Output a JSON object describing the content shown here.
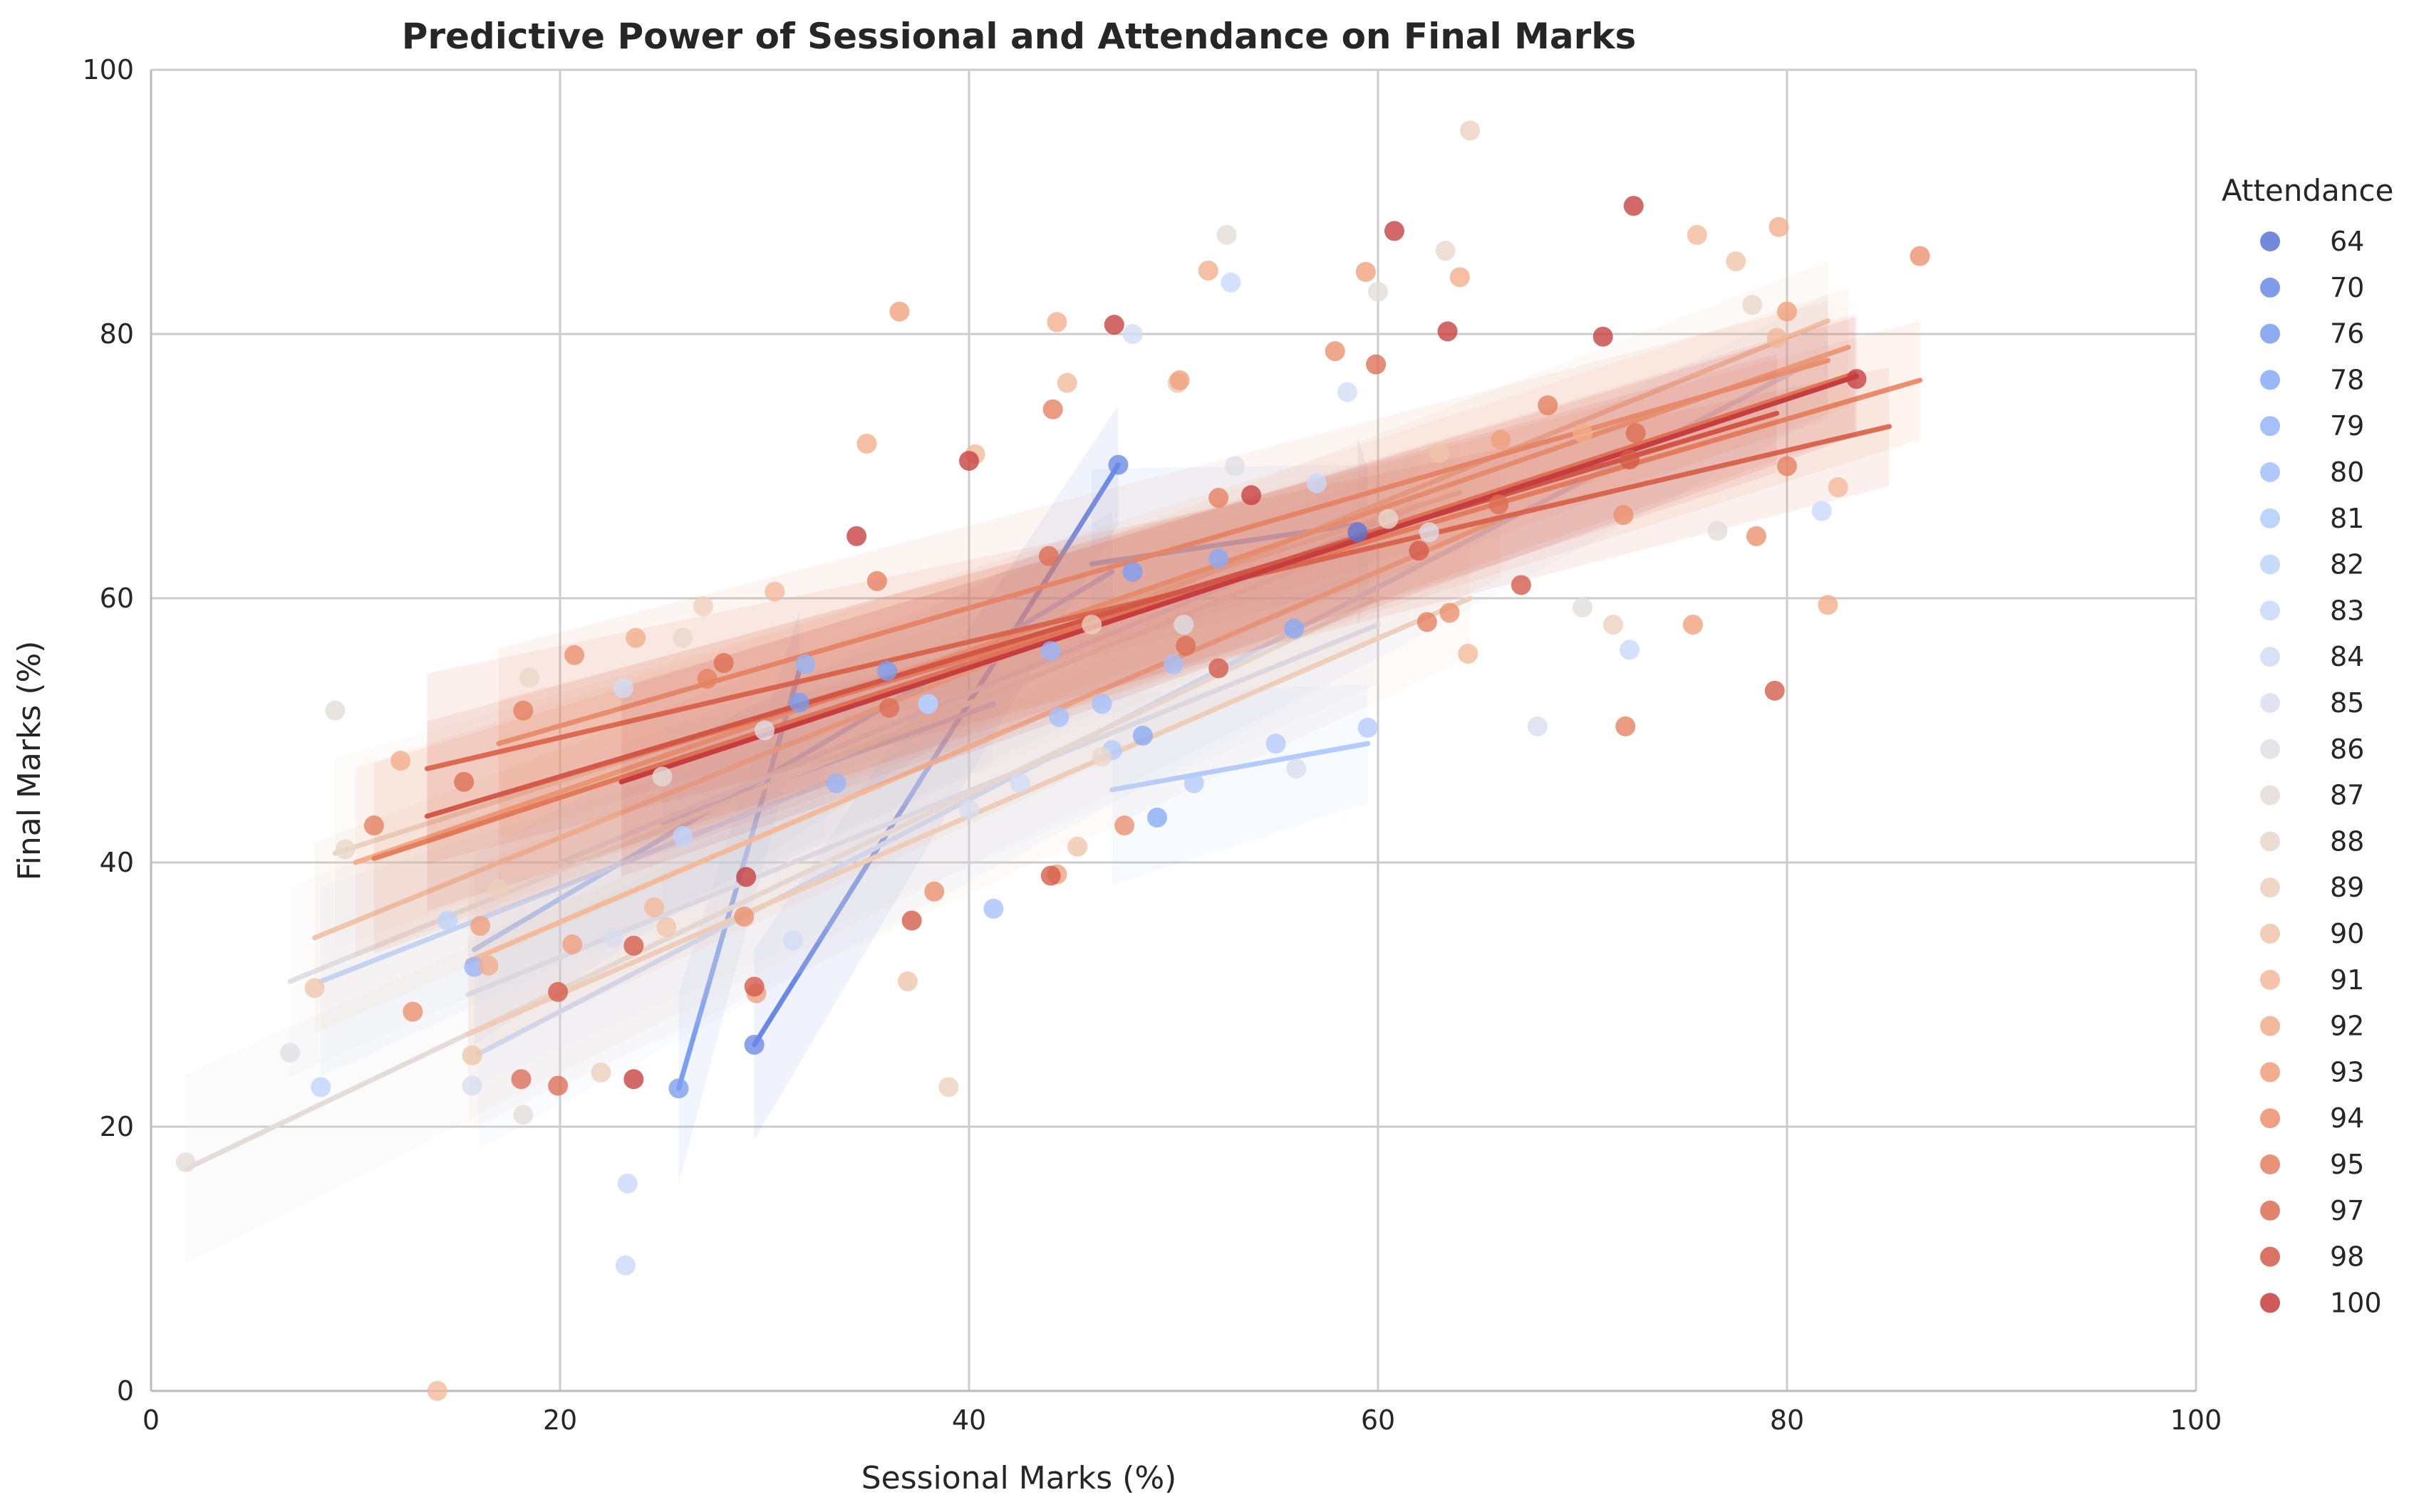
{
  "chart_data": {
    "type": "scatter",
    "title": "Predictive Power of Sessional and Attendance on Final Marks",
    "xlabel": "Sessional Marks (%)",
    "ylabel": "Final Marks (%)",
    "xlim": [
      0,
      100
    ],
    "ylim": [
      0,
      100
    ],
    "xticks": [
      "0",
      "20",
      "40",
      "60",
      "80",
      "100"
    ],
    "yticks": [
      "0",
      "20",
      "40",
      "60",
      "80",
      "100"
    ],
    "grid": true,
    "regression_lines": true,
    "legend": {
      "title": "Attendance",
      "placement": "right, outside plot"
    },
    "series": [
      {
        "name": "64",
        "color": "#5b74d6",
        "points": [
          [
            59,
            65
          ]
        ],
        "fit": [
          [
            59,
            65
          ],
          [
            59.5,
            65.2
          ]
        ]
      },
      {
        "name": "70",
        "color": "#6a89e6",
        "points": [
          [
            29.5,
            26.2
          ],
          [
            47.3,
            70.1
          ]
        ],
        "fit": [
          [
            29.5,
            26.2
          ],
          [
            47.3,
            70.1
          ]
        ]
      },
      {
        "name": "76",
        "color": "#7a9ef0",
        "points": [
          [
            25.8,
            22.9
          ],
          [
            31.7,
            52.1
          ],
          [
            36,
            54.5
          ],
          [
            48,
            62
          ]
        ],
        "fit": [
          [
            25.8,
            22.9
          ],
          [
            31.7,
            54.5
          ]
        ]
      },
      {
        "name": "78",
        "color": "#88aaf6",
        "points": [
          [
            48.5,
            49.6
          ],
          [
            49.2,
            43.4
          ],
          [
            55.9,
            57.7
          ],
          [
            52.2,
            63
          ]
        ],
        "fit": [
          [
            46,
            62.6
          ],
          [
            59,
            65.6
          ]
        ]
      },
      {
        "name": "79",
        "color": "#96b5f9",
        "points": [
          [
            15.8,
            32.1
          ],
          [
            32,
            55
          ],
          [
            38,
            52
          ],
          [
            44,
            56
          ],
          [
            33.5,
            46
          ]
        ],
        "fit": [
          [
            15.8,
            33.4
          ],
          [
            47,
            62
          ]
        ]
      },
      {
        "name": "80",
        "color": "#a5c0fc",
        "points": [
          [
            41.2,
            36.5
          ],
          [
            44.4,
            51
          ],
          [
            50,
            55
          ],
          [
            46.5,
            52
          ]
        ],
        "fit": [
          [
            25,
            43
          ],
          [
            41.2,
            52
          ]
        ]
      },
      {
        "name": "81",
        "color": "#b3cbfd",
        "points": [
          [
            47,
            48.5
          ],
          [
            51,
            46
          ],
          [
            55,
            49
          ],
          [
            59.5,
            50.2
          ]
        ],
        "fit": [
          [
            47,
            45.5
          ],
          [
            59.5,
            49
          ]
        ]
      },
      {
        "name": "82",
        "color": "#bfd3fd",
        "points": [
          [
            14.5,
            35.6
          ],
          [
            8.3,
            23
          ],
          [
            26,
            42
          ],
          [
            38,
            52
          ]
        ],
        "fit": [
          [
            8.3,
            31
          ],
          [
            33,
            46
          ]
        ]
      },
      {
        "name": "83",
        "color": "#c9d8fb",
        "points": [
          [
            23.3,
            15.7
          ],
          [
            23.2,
            9.5
          ],
          [
            52.8,
            83.9
          ],
          [
            72.3,
            56.1
          ],
          [
            81.7,
            66.6
          ],
          [
            57,
            68.7
          ]
        ],
        "fit": [
          [
            16,
            25.5
          ],
          [
            82,
            78.5
          ]
        ]
      },
      {
        "name": "84",
        "color": "#d2dcf6",
        "points": [
          [
            23.1,
            53.2
          ],
          [
            31.4,
            34.1
          ],
          [
            48,
            80
          ],
          [
            58.5,
            75.6
          ],
          [
            42.5,
            46
          ]
        ],
        "fit": [
          [
            20,
            40
          ],
          [
            62,
            67
          ]
        ]
      },
      {
        "name": "85",
        "color": "#d9def0",
        "points": [
          [
            15.7,
            23.1
          ],
          [
            22.6,
            34.3
          ],
          [
            40,
            44
          ],
          [
            56,
            47.1
          ],
          [
            67.8,
            50.3
          ]
        ],
        "fit": [
          [
            15.5,
            30
          ],
          [
            60,
            58
          ]
        ]
      },
      {
        "name": "86",
        "color": "#dfdfe6",
        "points": [
          [
            6.8,
            25.6
          ],
          [
            30,
            50
          ],
          [
            50.5,
            58
          ],
          [
            62.5,
            65
          ],
          [
            53,
            70
          ]
        ],
        "fit": [
          [
            6.8,
            31
          ],
          [
            62,
            66
          ]
        ]
      },
      {
        "name": "87",
        "color": "#e4dcd8",
        "points": [
          [
            1.7,
            17.3
          ],
          [
            9,
            51.5
          ],
          [
            18.2,
            20.9
          ],
          [
            25,
            46.5
          ],
          [
            52.6,
            87.5
          ],
          [
            60,
            83.2
          ],
          [
            70,
            59.3
          ],
          [
            76.6,
            65.1
          ]
        ],
        "fit": [
          [
            1.7,
            16.8
          ],
          [
            60,
            60
          ]
        ]
      },
      {
        "name": "88",
        "color": "#e9d7cb",
        "points": [
          [
            9.5,
            41
          ],
          [
            18.5,
            54
          ],
          [
            26,
            57
          ],
          [
            46.5,
            48
          ],
          [
            60.5,
            66
          ],
          [
            63.3,
            86.3
          ],
          [
            78.3,
            82.2
          ]
        ],
        "fit": [
          [
            9,
            40.7
          ],
          [
            64,
            68
          ]
        ]
      },
      {
        "name": "89",
        "color": "#edcfbc",
        "points": [
          [
            17,
            38
          ],
          [
            22,
            24.1
          ],
          [
            27,
            59.4
          ],
          [
            39,
            23
          ],
          [
            46,
            58
          ],
          [
            64.5,
            95.4
          ],
          [
            71.5,
            58
          ]
        ],
        "fit": [
          [
            15.5,
            27
          ],
          [
            64.5,
            60
          ]
        ]
      },
      {
        "name": "90",
        "color": "#f0c5ab",
        "points": [
          [
            8,
            30.5
          ],
          [
            15.7,
            25.4
          ],
          [
            25.2,
            35.1
          ],
          [
            37,
            31
          ],
          [
            45.3,
            41.2
          ],
          [
            50.2,
            76.3
          ],
          [
            63,
            71
          ],
          [
            77.5,
            85.5
          ]
        ],
        "fit": [
          [
            8,
            34.3
          ],
          [
            82,
            81
          ]
        ]
      },
      {
        "name": "91",
        "color": "#f2b99a",
        "points": [
          [
            14,
            0
          ],
          [
            24.6,
            36.6
          ],
          [
            30.5,
            60.5
          ],
          [
            40.3,
            70.9
          ],
          [
            44.8,
            76.3
          ],
          [
            64.4,
            55.8
          ],
          [
            82.5,
            68.4
          ],
          [
            75.6,
            87.5
          ],
          [
            79.5,
            79.7
          ]
        ],
        "fit": [
          [
            15.5,
            32.5
          ],
          [
            66,
            66
          ]
        ]
      },
      {
        "name": "92",
        "color": "#f2ad8a",
        "points": [
          [
            12.2,
            47.7
          ],
          [
            16.5,
            32.2
          ],
          [
            23.7,
            57
          ],
          [
            35,
            71.7
          ],
          [
            44.3,
            80.9
          ],
          [
            51.7,
            84.8
          ],
          [
            64,
            84.3
          ],
          [
            70,
            72.5
          ],
          [
            79.6,
            88.1
          ],
          [
            82,
            59.5
          ]
        ],
        "fit": [
          [
            10,
            40
          ],
          [
            83,
            79
          ]
        ]
      },
      {
        "name": "93",
        "color": "#f09f7b",
        "points": [
          [
            16.1,
            35.2
          ],
          [
            20.6,
            33.8
          ],
          [
            29.6,
            30.1
          ],
          [
            36.6,
            81.7
          ],
          [
            44.3,
            39.1
          ],
          [
            50.3,
            76.5
          ],
          [
            59.4,
            84.7
          ],
          [
            66,
            72
          ],
          [
            75.4,
            58
          ],
          [
            80,
            81.7
          ]
        ],
        "fit": [
          [
            17,
            49
          ],
          [
            82,
            78
          ]
        ]
      },
      {
        "name": "94",
        "color": "#ec8f6c",
        "points": [
          [
            12.8,
            28.7
          ],
          [
            20.7,
            55.7
          ],
          [
            29,
            35.9
          ],
          [
            38.3,
            37.8
          ],
          [
            47.6,
            42.8
          ],
          [
            57.9,
            78.7
          ],
          [
            63.5,
            58.9
          ],
          [
            72,
            66.3
          ],
          [
            78.5,
            64.7
          ],
          [
            86.5,
            85.9
          ]
        ],
        "fit": [
          [
            17,
            45.1
          ],
          [
            86.5,
            76.5
          ]
        ]
      },
      {
        "name": "95",
        "color": "#e57f5f",
        "points": [
          [
            10.9,
            42.8
          ],
          [
            18.2,
            51.5
          ],
          [
            27.2,
            53.9
          ],
          [
            35.5,
            61.3
          ],
          [
            44.1,
            74.3
          ],
          [
            52.2,
            67.6
          ],
          [
            62.4,
            58.2
          ],
          [
            68.3,
            74.6
          ],
          [
            72.1,
            50.3
          ],
          [
            80,
            70
          ]
        ],
        "fit": [
          [
            10.9,
            40.3
          ],
          [
            83.3,
            77
          ]
        ]
      },
      {
        "name": "97",
        "color": "#dc6d53",
        "points": [
          [
            15.3,
            46.1
          ],
          [
            18.1,
            23.6
          ],
          [
            19.9,
            23.1
          ],
          [
            28,
            55.1
          ],
          [
            36.1,
            51.7
          ],
          [
            43.9,
            63.2
          ],
          [
            50.6,
            56.4
          ],
          [
            59.9,
            77.7
          ],
          [
            65.9,
            67.1
          ],
          [
            72.6,
            72.5
          ]
        ],
        "fit": [
          [
            13.5,
            47.1
          ],
          [
            85,
            73
          ]
        ]
      },
      {
        "name": "98",
        "color": "#d35a48",
        "points": [
          [
            19.9,
            30.2
          ],
          [
            23.6,
            33.7
          ],
          [
            29.5,
            30.6
          ],
          [
            37.2,
            35.6
          ],
          [
            44,
            39
          ],
          [
            52.2,
            54.7
          ],
          [
            62,
            63.6
          ],
          [
            67,
            61
          ],
          [
            72.3,
            70.5
          ],
          [
            79.4,
            53
          ]
        ],
        "fit": [
          [
            13.5,
            43.5
          ],
          [
            79.5,
            74
          ]
        ]
      },
      {
        "name": "100",
        "color": "#c63d3f",
        "points": [
          [
            23.6,
            23.6
          ],
          [
            29.1,
            38.9
          ],
          [
            34.5,
            64.7
          ],
          [
            40,
            70.4
          ],
          [
            47.1,
            80.7
          ],
          [
            53.8,
            67.8
          ],
          [
            60.8,
            87.8
          ],
          [
            63.4,
            80.2
          ],
          [
            71,
            79.8
          ],
          [
            72.5,
            89.7
          ],
          [
            83.4,
            76.6
          ]
        ],
        "fit": [
          [
            23,
            46.1
          ],
          [
            83.4,
            76.8
          ]
        ]
      }
    ]
  }
}
